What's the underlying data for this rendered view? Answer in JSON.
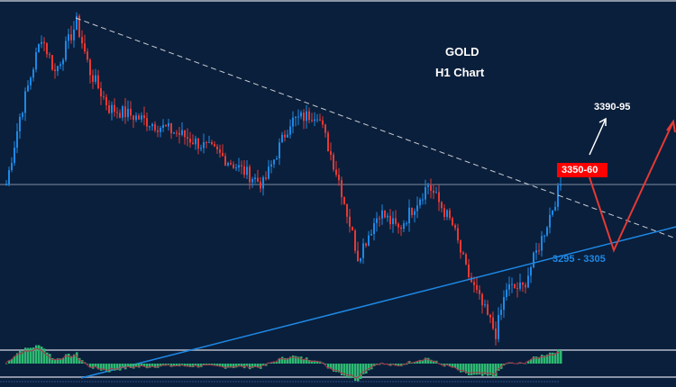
{
  "chart_data": {
    "type": "candlestick",
    "title": "GOLD",
    "subtitle": "H1 Chart",
    "price_range": [
      3250,
      3435
    ],
    "bars_visible": 250,
    "price_path": [
      [
        2,
        3340
      ],
      [
        7,
        3377.5
      ],
      [
        15,
        3422.5
      ],
      [
        20,
        3402.5
      ],
      [
        28,
        3430
      ],
      [
        33,
        3402.5
      ],
      [
        40,
        3382.5
      ],
      [
        50,
        3377.5
      ],
      [
        67,
        3367.5
      ],
      [
        80,
        3357.5
      ],
      [
        97,
        3340
      ],
      [
        107,
        3375
      ],
      [
        117,
        3380
      ],
      [
        125,
        3342.5
      ],
      [
        132,
        3300
      ],
      [
        140,
        3325
      ],
      [
        147,
        3315
      ],
      [
        158,
        3340
      ],
      [
        167,
        3317.5
      ],
      [
        172,
        3292.5
      ],
      [
        178,
        3272.5
      ],
      [
        183,
        3257.5
      ],
      [
        187,
        3282.5
      ],
      [
        193,
        3282.5
      ],
      [
        200,
        3310
      ],
      [
        207,
        3340
      ]
    ],
    "horizontal_level": 3340,
    "resistance_trendline": [
      [
        28,
        3432.5
      ],
      [
        250,
        3310
      ]
    ],
    "support_trendline": [
      [
        30,
        3232.5
      ],
      [
        250,
        3316.5
      ]
    ],
    "projection_path": [
      [
        218,
        3344
      ],
      [
        227,
        3303.5
      ],
      [
        249,
        3375
      ]
    ],
    "bull_arrow": [
      [
        218,
        3356.5
      ],
      [
        224,
        3376.5
      ]
    ],
    "annotations": {
      "target_high": "3390-95",
      "resistance_zone": "3350-60",
      "support_zone": "3295 - 3305"
    },
    "colors": {
      "background": "#0a1f3b",
      "up": "#1e88e5",
      "down": "#e53935",
      "support": "#1e88e5",
      "projection": "#e53935",
      "histogram": "#2eb872",
      "signal": "#b0304a"
    }
  }
}
